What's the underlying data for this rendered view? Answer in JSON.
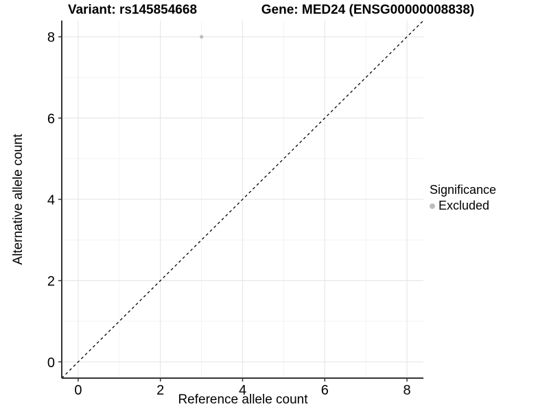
{
  "chart_data": {
    "type": "scatter",
    "titles": {
      "left": "Variant: rs145854668",
      "right": "Gene: MED24 (ENSG00000008838)"
    },
    "xlabel": "Reference allele count",
    "ylabel": "Alternative allele count",
    "xlim": [
      -0.4,
      8.4
    ],
    "ylim": [
      -0.4,
      8.4
    ],
    "x_major_ticks": [
      0,
      2,
      4,
      6,
      8
    ],
    "x_minor_gridlines": [
      1,
      3,
      5,
      7
    ],
    "y_major_ticks": [
      0,
      2,
      4,
      6,
      8
    ],
    "y_minor_gridlines": [
      1,
      3,
      5,
      7
    ],
    "grid": "major+minor",
    "reference_line": {
      "type": "identity",
      "slope": 1,
      "intercept": 0,
      "style": "dashed"
    },
    "points": [
      {
        "x": 3,
        "y": 8,
        "series": "Excluded"
      }
    ],
    "legend": {
      "title": "Significance",
      "position": "right",
      "items": [
        {
          "label": "Excluded"
        }
      ]
    }
  },
  "colors": {
    "background": "#ffffff",
    "text": "#000000",
    "axis_line": "#333333",
    "tick_mark": "#333333",
    "grid_major": "#e7e7e7",
    "grid_minor": "#f3f3f3",
    "dashed_line": "#000000",
    "point_excluded": "#bdbdbd"
  }
}
